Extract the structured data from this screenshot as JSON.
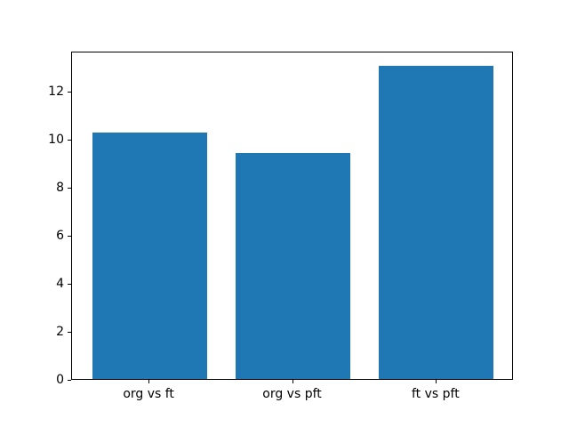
{
  "chart_data": {
    "type": "bar",
    "title": "",
    "xlabel": "",
    "ylabel": "",
    "categories": [
      "org vs ft",
      "org vs pft",
      "ft vs pft"
    ],
    "values": [
      10.25,
      9.4,
      13.05
    ],
    "yticks": [
      0,
      2,
      4,
      6,
      8,
      10,
      12
    ],
    "ylim": [
      0,
      13.67
    ],
    "bar_color": "#1f77b4",
    "axis_color": "#000000",
    "background_color": "#ffffff",
    "grid": false,
    "legend_position": "none"
  }
}
